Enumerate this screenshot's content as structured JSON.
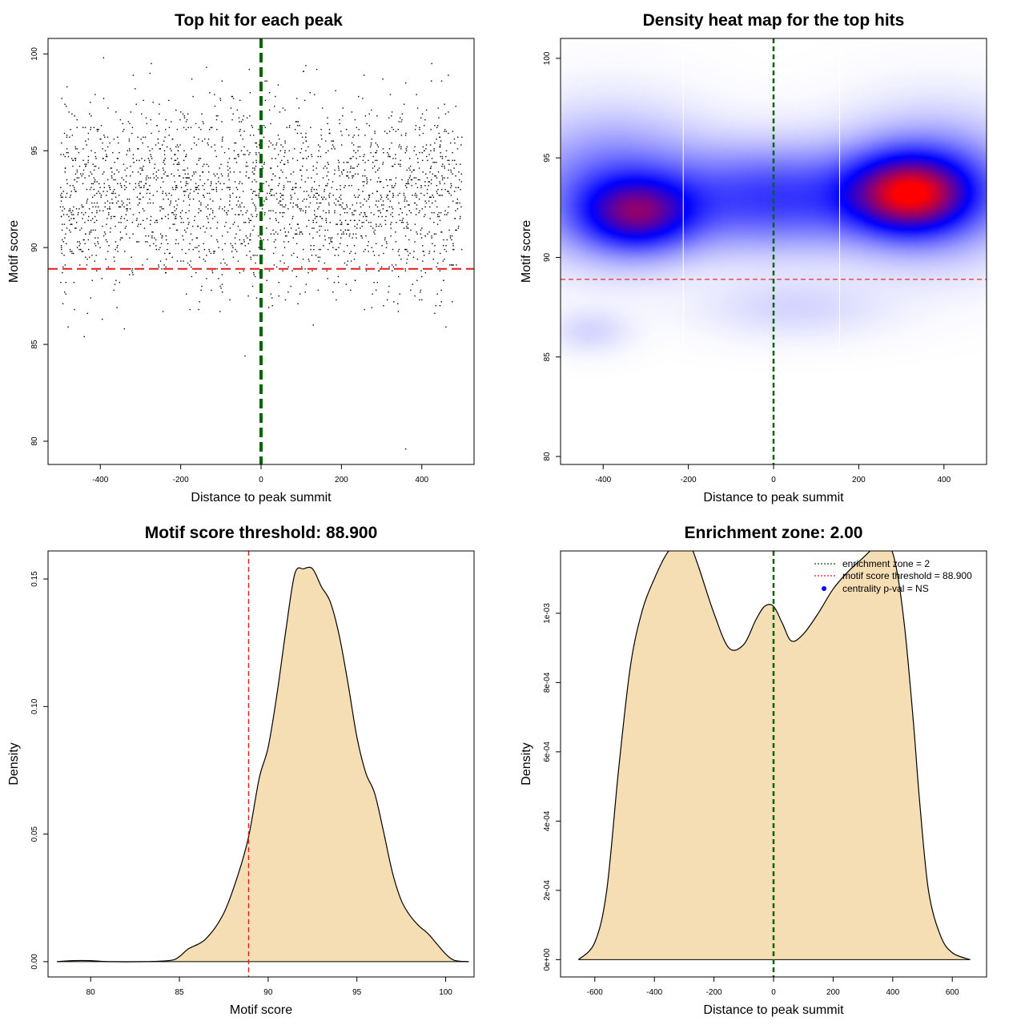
{
  "chart_data": [
    {
      "id": "p1",
      "type": "scatter",
      "title": "Top hit for each peak",
      "xlabel": "Distance to peak summit",
      "ylabel": "Motif score",
      "xlim": [
        -530,
        530
      ],
      "ylim": [
        78.8,
        100.8
      ],
      "xticks": [
        -400,
        -200,
        0,
        200,
        400
      ],
      "yticks": [
        80,
        85,
        90,
        95,
        100
      ],
      "threshold_y": 88.9,
      "summit_x": 0,
      "colors": {
        "points": "#000000",
        "threshold": "#e41a1c",
        "summit": "#006400"
      },
      "points_approx": {
        "n": 2400,
        "x_range": [
          -500,
          500
        ],
        "score_mean": 92.6,
        "score_sd": 2.4,
        "score_max": 100,
        "outliers": [
          [
            -440,
            85.4
          ],
          [
            -395,
            86.3
          ],
          [
            -340,
            85.8
          ],
          [
            -40,
            84.4
          ],
          [
            360,
            79.6
          ],
          [
            460,
            85.9
          ],
          [
            -480,
            85.9
          ],
          [
            130,
            86.0
          ]
        ]
      }
    },
    {
      "id": "p2",
      "type": "heatmap",
      "title": "Density heat map for the top hits",
      "xlabel": "Distance to peak summit",
      "ylabel": "Motif score",
      "xlim": [
        -500,
        500
      ],
      "ylim": [
        79.6,
        101
      ],
      "xticks": [
        -400,
        -200,
        0,
        200,
        400
      ],
      "yticks": [
        80,
        85,
        90,
        95,
        100
      ],
      "threshold_y": 88.9,
      "summit_x": 0,
      "zone_lines_x": [
        -212,
        155
      ],
      "palette": [
        "#ffffff",
        "#0000ff",
        "#ff0000"
      ],
      "density_blobs": [
        {
          "x": -320,
          "y": 92.2,
          "sx": 90,
          "sy": 1.2,
          "w": 0.55
        },
        {
          "x": 320,
          "y": 93.2,
          "sx": 95,
          "sy": 1.3,
          "w": 0.8
        },
        {
          "x": 0,
          "y": 93.0,
          "sx": 170,
          "sy": 1.6,
          "w": 0.35
        },
        {
          "x": -380,
          "y": 93.5,
          "sx": 140,
          "sy": 2.2,
          "w": 0.25
        },
        {
          "x": 380,
          "y": 93.5,
          "sx": 140,
          "sy": 2.2,
          "w": 0.25
        },
        {
          "x": -430,
          "y": 86.3,
          "sx": 60,
          "sy": 0.7,
          "w": 0.05
        },
        {
          "x": 50,
          "y": 87.5,
          "sx": 140,
          "sy": 1.0,
          "w": 0.05
        }
      ]
    },
    {
      "id": "p3",
      "type": "area",
      "title": "Motif score threshold: 88.900",
      "xlabel": "Motif score",
      "ylabel": "Density",
      "xlim": [
        77.6,
        101.6
      ],
      "ylim": [
        -0.006,
        0.161
      ],
      "xticks": [
        80,
        85,
        90,
        95,
        100
      ],
      "yticks": [
        0.0,
        0.05,
        0.1,
        0.15
      ],
      "ytick_labels": [
        "0.00",
        "0.05",
        "0.10",
        "0.15"
      ],
      "threshold_x": 88.9,
      "colors": {
        "fill": "#f5deb3",
        "line": "#000000",
        "threshold": "#e41a1c"
      },
      "x": [
        78.1,
        79.0,
        80.0,
        81.0,
        83.0,
        84.5,
        85.0,
        85.5,
        86.5,
        87.5,
        88.3,
        88.9,
        89.5,
        90.0,
        90.5,
        91.0,
        91.5,
        92.0,
        92.5,
        93.0,
        93.5,
        94.0,
        94.5,
        95.0,
        95.5,
        96.0,
        96.5,
        97.0,
        97.5,
        98.0,
        98.5,
        99.0,
        99.5,
        100.0,
        100.5,
        101.3
      ],
      "y": [
        0.0,
        0.0004,
        0.0004,
        0.0,
        0.0,
        0.0005,
        0.002,
        0.005,
        0.009,
        0.019,
        0.034,
        0.049,
        0.072,
        0.084,
        0.105,
        0.13,
        0.152,
        0.154,
        0.154,
        0.147,
        0.141,
        0.128,
        0.109,
        0.088,
        0.074,
        0.066,
        0.051,
        0.035,
        0.024,
        0.018,
        0.014,
        0.011,
        0.007,
        0.003,
        0.0005,
        0.0
      ]
    },
    {
      "id": "p4",
      "type": "area",
      "title": "Enrichment zone: 2.00",
      "xlabel": "Distance to peak summit",
      "ylabel": "Density",
      "xlim": [
        -715,
        715
      ],
      "ylim": [
        -5e-05,
        0.00118
      ],
      "xticks": [
        -600,
        -400,
        -200,
        0,
        200,
        400,
        600
      ],
      "yticks": [
        0,
        0.0002,
        0.0004,
        0.0006,
        0.0008,
        0.001
      ],
      "ytick_labels": [
        "0e+00",
        "2e-04",
        "4e-04",
        "6e-04",
        "8e-04",
        "1e-03"
      ],
      "summit_x": 0,
      "colors": {
        "fill": "#f5deb3",
        "line": "#000000",
        "summit": "#006400"
      },
      "x": [
        -655,
        -600,
        -560,
        -520,
        -480,
        -440,
        -400,
        -360,
        -320,
        -300,
        -280,
        -250,
        -200,
        -150,
        -100,
        -60,
        -30,
        0,
        30,
        60,
        100,
        150,
        200,
        250,
        300,
        350,
        380,
        410,
        440,
        470,
        490,
        520,
        560,
        600,
        660
      ],
      "y": [
        0.0,
        5e-05,
        0.0002,
        0.00055,
        0.00085,
        0.00101,
        0.0011,
        0.00117,
        0.00121,
        0.00122,
        0.0012,
        0.00113,
        0.001,
        0.0009,
        0.00091,
        0.00098,
        0.00102,
        0.00102,
        0.00097,
        0.00092,
        0.00094,
        0.001,
        0.00107,
        0.00112,
        0.00116,
        0.0012,
        0.00121,
        0.00114,
        0.00096,
        0.00068,
        0.00046,
        0.0002,
        7e-05,
        2e-05,
        0.0
      ]
    }
  ],
  "legend": {
    "items": [
      {
        "label": "enrichment zone = 2",
        "color": "#006400",
        "kind": "line"
      },
      {
        "label": "motif score threshold = 88.900",
        "color": "#e41a1c",
        "kind": "line"
      },
      {
        "label": "centrality p-val = NS",
        "color": "#0000ff",
        "kind": "point"
      }
    ]
  }
}
